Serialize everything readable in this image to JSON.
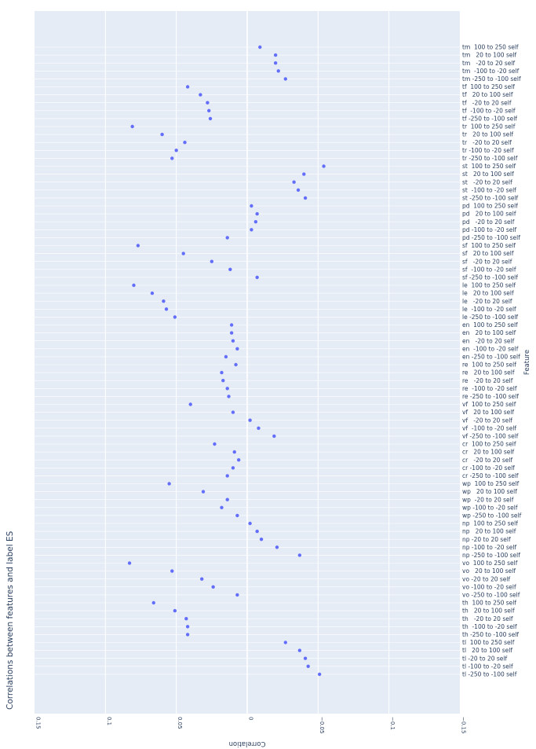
{
  "chart_data": {
    "type": "scatter",
    "title": "Correlations between features and label ES",
    "xlabel": "Correlation",
    "ylabel": "Feature",
    "xlim": [
      -0.15,
      0.15
    ],
    "x_ticks": [
      0.15,
      0.1,
      0.05,
      0,
      -0.05,
      -0.1,
      -0.15
    ],
    "x_tick_labels": [
      "0.15",
      "0.1",
      "0.05",
      "0",
      "−0.05",
      "−0.1",
      "−0.15"
    ],
    "grid": true,
    "marker_color": "#636efa",
    "plot_bg": "#e5ecf6",
    "categories": [
      "tm  100 to 250 self",
      "tm   20 to 100 self",
      "tm   -20 to 20 self",
      "tm  -100 to -20 self",
      "tm -250 to -100 self",
      "tf  100 to 250 self",
      "tf   20 to 100 self",
      "tf   -20 to 20 self",
      "tf  -100 to -20 self",
      "tf -250 to -100 self",
      "tr  100 to 250 self",
      "tr   20 to 100 self",
      "tr   -20 to 20 self",
      "tr -100 to -20 self",
      "tr -250 to -100 self",
      "st  100 to 250 self",
      "st   20 to 100 self",
      "st   -20 to 20 self",
      "st  -100 to -20 self",
      "st -250 to -100 self",
      "pd  100 to 250 self",
      "pd   20 to 100 self",
      "pd   -20 to 20 self",
      "pd -100 to -20 self",
      "pd -250 to -100 self",
      "sf  100 to 250 self",
      "sf   20 to 100 self",
      "sf   -20 to 20 self",
      "sf  -100 to -20 self",
      "sf -250 to -100 self",
      "le  100 to 250 self",
      "le   20 to 100 self",
      "le   -20 to 20 self",
      "le  -100 to -20 self",
      "le -250 to -100 self",
      "en  100 to 250 self",
      "en   20 to 100 self",
      "en   -20 to 20 self",
      "en  -100 to -20 self",
      "en -250 to -100 self",
      "re  100 to 250 self",
      "re   20 to 100 self",
      "re   -20 to 20 self",
      "re  -100 to -20 self",
      "re -250 to -100 self",
      "vf  100 to 250 self",
      "vf   20 to 100 self",
      "vf   -20 to 20 self",
      "vf  -100 to -20 self",
      "vf -250 to -100 self",
      "cr  100 to 250 self",
      "cr   20 to 100 self",
      "cr   -20 to 20 self",
      "cr -100 to -20 self",
      "cr -250 to -100 self",
      "wp  100 to 250 self",
      "wp   20 to 100 self",
      "wp  -20 to 20 self",
      "wp -100 to -20 self",
      "wp -250 to -100 self",
      "np  100 to 250 self",
      "np   20 to 100 self",
      "np -20 to 20 self",
      "np -100 to -20 self",
      "np -250 to -100 self",
      "vo  100 to 250 self",
      "vo   20 to 100 self",
      "vo -20 to 20 self",
      "vo -100 to -20 self",
      "vo -250 to -100 self",
      "th  100 to 250 self",
      "th   20 to 100 self",
      "th   -20 to 20 self",
      "th  -100 to -20 self",
      "th -250 to -100 self",
      "tl  100 to 250 self",
      "tl   20 to 100 self",
      "tl -20 to 20 self",
      "tl -100 to -20 self",
      "tl -250 to -100 self"
    ],
    "values": [
      -0.009,
      -0.02,
      -0.02,
      -0.022,
      -0.027,
      0.042,
      0.033,
      0.028,
      0.027,
      0.026,
      0.081,
      0.06,
      0.044,
      0.05,
      0.053,
      -0.054,
      -0.04,
      -0.033,
      -0.036,
      -0.041,
      -0.003,
      -0.007,
      -0.006,
      -0.003,
      0.014,
      0.077,
      0.045,
      0.025,
      0.012,
      -0.007,
      0.08,
      0.067,
      0.059,
      0.057,
      0.051,
      0.011,
      0.011,
      0.01,
      0.007,
      0.015,
      0.008,
      0.018,
      0.017,
      0.014,
      0.013,
      0.04,
      0.01,
      -0.002,
      -0.008,
      -0.019,
      0.023,
      0.009,
      0.006,
      0.01,
      0.014,
      0.055,
      0.031,
      0.014,
      0.018,
      0.007,
      -0.002,
      -0.007,
      -0.01,
      -0.021,
      -0.037,
      0.083,
      0.053,
      0.032,
      0.024,
      0.007,
      0.066,
      0.051,
      0.043,
      0.042,
      0.042,
      -0.027,
      -0.037,
      -0.041,
      -0.043,
      -0.051
    ]
  }
}
